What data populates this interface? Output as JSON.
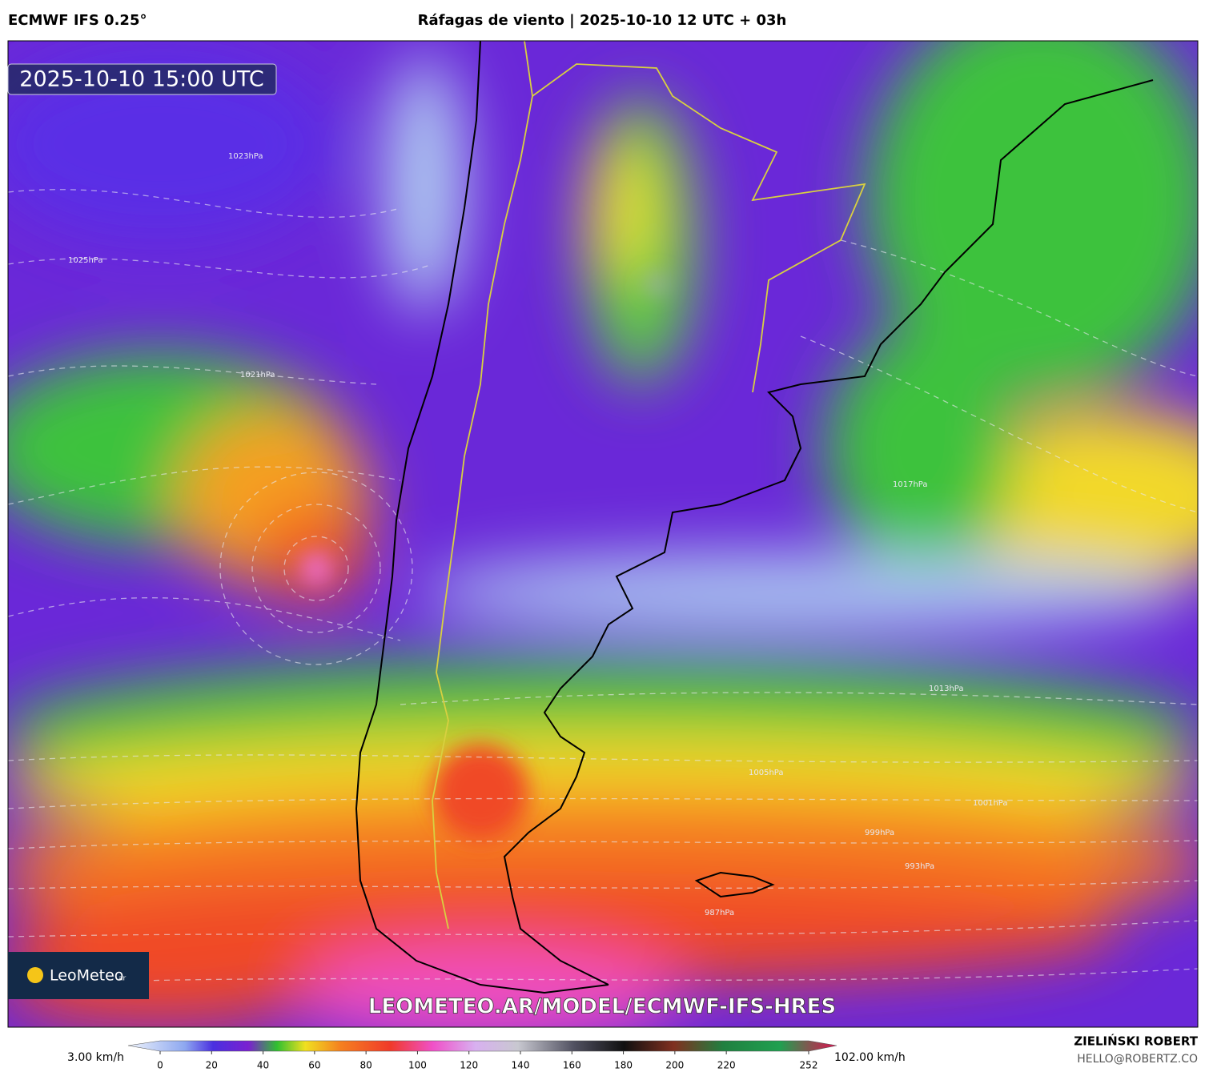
{
  "header": {
    "model": "ECMWF IFS 0.25°",
    "title": "Ráfagas de viento | 2025-10-10 12 UTC + 03h"
  },
  "map": {
    "valid_time": "2025-10-10 15:00 UTC",
    "watermark": "LEOMETEO.AR/MODEL/ECMWF-IFS-HRES",
    "logo": {
      "name": "LeoMeteo",
      "suffix": "ar"
    },
    "isobar_labels": [
      "1023hPa",
      "1025hPa",
      "1021hPa",
      "1017hPa",
      "1013hPa",
      "1005hPa",
      "1001hPa",
      "999hPa",
      "993hPa",
      "987hPa"
    ]
  },
  "colorbar": {
    "min_label": "3.00 km/h",
    "max_label": "102.00 km/h",
    "ticks": [
      0,
      20,
      40,
      60,
      80,
      100,
      120,
      140,
      160,
      180,
      200,
      220,
      252
    ]
  },
  "footer": {
    "author": "ZIELIŃSKI ROBERT",
    "email": "HELLO@ROBERTZ.CO"
  }
}
